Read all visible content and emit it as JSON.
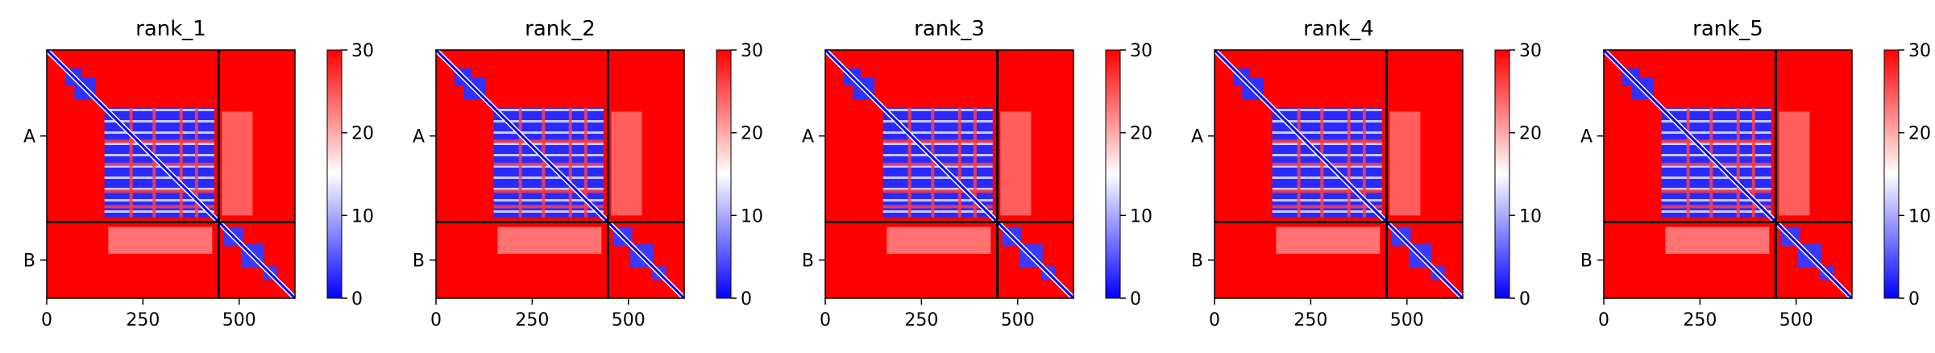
{
  "chart_data": {
    "type": "heatmap",
    "colormap": [
      "#0000ff",
      "#ffffff",
      "#ff0000"
    ],
    "colorbar": {
      "min": 0,
      "max": 30,
      "ticks": [
        "0",
        "10",
        "20",
        "30"
      ]
    },
    "x_ticks": [
      "0",
      "250",
      "500"
    ],
    "x_tick_values": [
      0,
      250,
      500
    ],
    "x_range": [
      0,
      645
    ],
    "chains": [
      {
        "label": "A",
        "start": 0,
        "end": 447
      },
      {
        "label": "B",
        "start": 447,
        "end": 645
      }
    ],
    "panels": [
      {
        "title": "rank_1"
      },
      {
        "title": "rank_2"
      },
      {
        "title": "rank_3"
      },
      {
        "title": "rank_4"
      },
      {
        "title": "rank_5"
      }
    ]
  }
}
